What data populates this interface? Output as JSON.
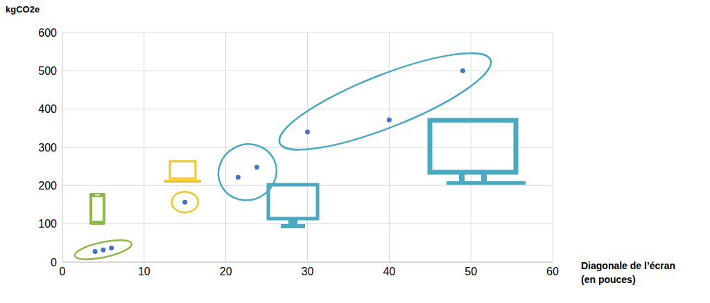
{
  "chart_data": {
    "type": "scatter",
    "y_label": "kgCO2e",
    "x_label": "Diagonale de l’écran (en pouces)",
    "x": [
      4,
      5,
      6,
      15,
      21.5,
      23.8,
      30,
      40,
      49
    ],
    "values": [
      28,
      32,
      37,
      157,
      222,
      248,
      340,
      372,
      500
    ],
    "color": "#4472c4",
    "marker": "circle",
    "xlim": [
      0,
      60
    ],
    "ylim": [
      0,
      600
    ],
    "xticks": [
      0,
      10,
      20,
      30,
      40,
      50,
      60
    ],
    "yticks": [
      0,
      100,
      200,
      300,
      400,
      500,
      600
    ],
    "grid": true
  }
}
